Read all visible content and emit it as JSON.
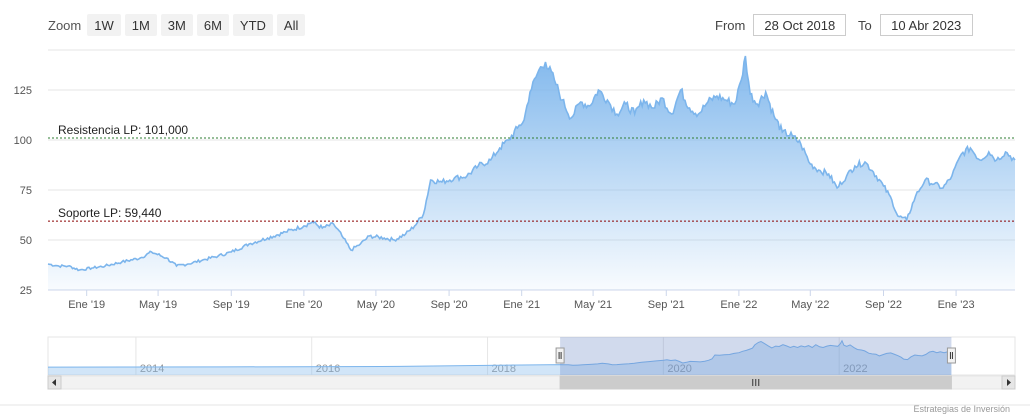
{
  "zoom": {
    "label": "Zoom",
    "buttons": [
      "1W",
      "1M",
      "3M",
      "6M",
      "YTD",
      "All"
    ]
  },
  "range": {
    "from_label": "From",
    "from_value": "28 Oct 2018",
    "to_label": "To",
    "to_value": "10 Abr 2023"
  },
  "credits": "Estrategias de Inversión",
  "colors": {
    "line": "#7cb5ec",
    "fill_top": "#7cb5ec",
    "resistance": "#2e7d32",
    "support": "#8b0000"
  },
  "chart_data": {
    "type": "area",
    "x_start": "2018-10-28",
    "x_end": "2023-04-10",
    "ylim": [
      25,
      145
    ],
    "yticks": [
      25,
      50,
      75,
      100,
      125
    ],
    "xticks": [
      {
        "label": "Ene '19",
        "date": "2019-01-01"
      },
      {
        "label": "May '19",
        "date": "2019-05-01"
      },
      {
        "label": "Sep '19",
        "date": "2019-09-01"
      },
      {
        "label": "Ene '20",
        "date": "2020-01-01"
      },
      {
        "label": "May '20",
        "date": "2020-05-01"
      },
      {
        "label": "Sep '20",
        "date": "2020-09-01"
      },
      {
        "label": "Ene '21",
        "date": "2021-01-01"
      },
      {
        "label": "May '21",
        "date": "2021-05-01"
      },
      {
        "label": "Sep '21",
        "date": "2021-09-01"
      },
      {
        "label": "Ene '22",
        "date": "2022-01-01"
      },
      {
        "label": "May '22",
        "date": "2022-05-01"
      },
      {
        "label": "Sep '22",
        "date": "2022-09-01"
      },
      {
        "label": "Ene '23",
        "date": "2023-01-01"
      }
    ],
    "series": [
      {
        "points": [
          [
            "2018-10-28",
            38
          ],
          [
            "2018-11-15",
            37
          ],
          [
            "2018-12-01",
            37
          ],
          [
            "2018-12-20",
            35
          ],
          [
            "2019-01-10",
            36
          ],
          [
            "2019-02-01",
            37
          ],
          [
            "2019-03-01",
            39
          ],
          [
            "2019-04-01",
            41
          ],
          [
            "2019-04-20",
            44
          ],
          [
            "2019-05-15",
            41
          ],
          [
            "2019-06-01",
            37
          ],
          [
            "2019-06-20",
            38
          ],
          [
            "2019-07-15",
            40
          ],
          [
            "2019-08-10",
            42
          ],
          [
            "2019-09-01",
            44
          ],
          [
            "2019-10-01",
            48
          ],
          [
            "2019-11-01",
            51
          ],
          [
            "2019-12-01",
            54
          ],
          [
            "2020-01-01",
            57
          ],
          [
            "2020-01-15",
            59
          ],
          [
            "2020-02-01",
            56
          ],
          [
            "2020-02-20",
            58
          ],
          [
            "2020-03-05",
            52
          ],
          [
            "2020-03-20",
            45
          ],
          [
            "2020-04-05",
            48
          ],
          [
            "2020-04-20",
            52
          ],
          [
            "2020-05-15",
            51
          ],
          [
            "2020-06-01",
            50
          ],
          [
            "2020-06-20",
            53
          ],
          [
            "2020-07-05",
            57
          ],
          [
            "2020-07-20",
            63
          ],
          [
            "2020-08-01",
            80
          ],
          [
            "2020-08-20",
            79
          ],
          [
            "2020-09-10",
            81
          ],
          [
            "2020-10-01",
            82
          ],
          [
            "2020-10-20",
            87
          ],
          [
            "2020-11-10",
            90
          ],
          [
            "2020-11-25",
            96
          ],
          [
            "2020-12-10",
            100
          ],
          [
            "2020-12-25",
            106
          ],
          [
            "2021-01-05",
            110
          ],
          [
            "2021-01-15",
            124
          ],
          [
            "2021-01-30",
            135
          ],
          [
            "2021-02-10",
            139
          ],
          [
            "2021-02-25",
            130
          ],
          [
            "2021-03-10",
            120
          ],
          [
            "2021-03-25",
            111
          ],
          [
            "2021-04-10",
            119
          ],
          [
            "2021-04-25",
            117
          ],
          [
            "2021-05-10",
            125
          ],
          [
            "2021-05-25",
            120
          ],
          [
            "2021-06-10",
            113
          ],
          [
            "2021-06-25",
            118
          ],
          [
            "2021-07-10",
            113
          ],
          [
            "2021-07-25",
            120
          ],
          [
            "2021-08-10",
            116
          ],
          [
            "2021-08-25",
            121
          ],
          [
            "2021-09-10",
            113
          ],
          [
            "2021-09-25",
            125
          ],
          [
            "2021-10-10",
            116
          ],
          [
            "2021-10-25",
            113
          ],
          [
            "2021-11-10",
            119
          ],
          [
            "2021-11-25",
            122
          ],
          [
            "2021-12-10",
            120
          ],
          [
            "2021-12-25",
            118
          ],
          [
            "2022-01-05",
            130
          ],
          [
            "2022-01-12",
            142
          ],
          [
            "2022-01-20",
            123
          ],
          [
            "2022-02-01",
            118
          ],
          [
            "2022-02-15",
            124
          ],
          [
            "2022-03-01",
            112
          ],
          [
            "2022-03-15",
            104
          ],
          [
            "2022-04-01",
            102
          ],
          [
            "2022-04-15",
            98
          ],
          [
            "2022-05-01",
            88
          ],
          [
            "2022-05-15",
            85
          ],
          [
            "2022-06-01",
            83
          ],
          [
            "2022-06-15",
            76
          ],
          [
            "2022-07-01",
            82
          ],
          [
            "2022-07-15",
            87
          ],
          [
            "2022-08-01",
            89
          ],
          [
            "2022-08-15",
            84
          ],
          [
            "2022-09-01",
            77
          ],
          [
            "2022-09-15",
            70
          ],
          [
            "2022-09-25",
            62
          ],
          [
            "2022-10-10",
            60
          ],
          [
            "2022-10-25",
            72
          ],
          [
            "2022-11-10",
            80
          ],
          [
            "2022-11-25",
            78
          ],
          [
            "2022-12-10",
            76
          ],
          [
            "2022-12-25",
            82
          ],
          [
            "2023-01-10",
            93
          ],
          [
            "2023-01-25",
            96
          ],
          [
            "2023-02-10",
            90
          ],
          [
            "2023-02-25",
            94
          ],
          [
            "2023-03-10",
            90
          ],
          [
            "2023-03-25",
            94
          ],
          [
            "2023-04-10",
            90
          ]
        ]
      }
    ],
    "plot_lines": [
      {
        "label": "Resistencia LP: 101,000",
        "value": 101.0,
        "color": "#2e7d32"
      },
      {
        "label": "Soporte LP: 59,440",
        "value": 59.44,
        "color": "#8b0000"
      }
    ],
    "navigator": {
      "labels": [
        "2014",
        "2016",
        "2018",
        "2020",
        "2022"
      ],
      "selection_start": "2018-10-28",
      "selection_end": "2023-04-10"
    }
  }
}
